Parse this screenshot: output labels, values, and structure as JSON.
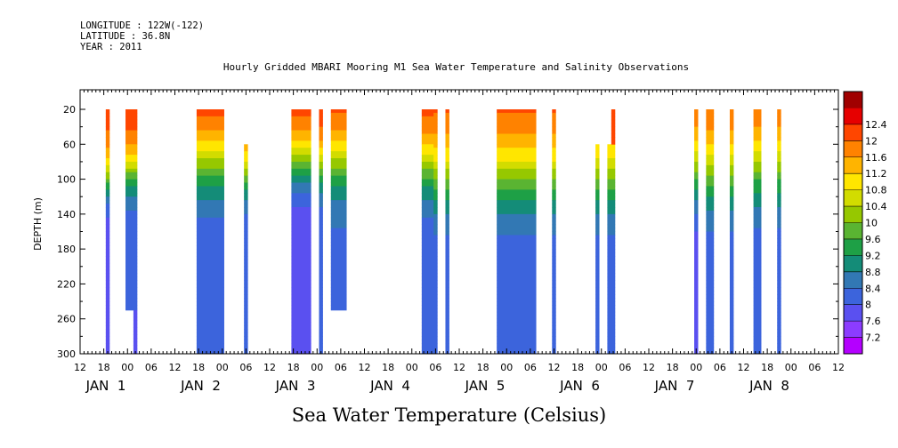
{
  "header": {
    "longitude": "LONGITUDE : 122W(-122)",
    "latitude": "LATITUDE : 36.8N",
    "year": "YEAR : 2011"
  },
  "chart_data": {
    "type": "heatmap",
    "title": "Hourly Gridded MBARI Mooring M1 Sea Water Temperature and Salinity Observations",
    "xlabel": "",
    "ylabel": "DEPTH (m)",
    "colorbar_label": "Sea Water Temperature (Celsius)",
    "x_unit": "hours since JAN 1 00",
    "xlim": [
      -12,
      180
    ],
    "ylim": [
      300,
      20
    ],
    "x_tick_labels": [
      "12",
      "18",
      "00",
      "06",
      "12",
      "18",
      "00",
      "06",
      "12",
      "18",
      "00",
      "06",
      "12",
      "18",
      "00",
      "06",
      "12",
      "18",
      "00",
      "06",
      "12",
      "18",
      "00",
      "06",
      "12",
      "18",
      "00",
      "06",
      "12",
      "18",
      "00",
      "06",
      "12"
    ],
    "x_tick_hours": [
      -12,
      -6,
      0,
      6,
      12,
      18,
      24,
      30,
      36,
      42,
      48,
      54,
      60,
      66,
      72,
      78,
      84,
      90,
      96,
      102,
      108,
      114,
      120,
      126,
      132,
      138,
      144,
      150,
      156,
      162,
      168,
      174,
      180
    ],
    "date_labels": [
      {
        "label": "JAN  1",
        "hour": -10.5
      },
      {
        "label": "JAN  2",
        "hour": 13.5
      },
      {
        "label": "JAN  3",
        "hour": 37.5
      },
      {
        "label": "JAN  4",
        "hour": 61.5
      },
      {
        "label": "JAN  5",
        "hour": 85.5
      },
      {
        "label": "JAN  6",
        "hour": 109.5
      },
      {
        "label": "JAN  7",
        "hour": 133.5
      },
      {
        "label": "JAN  8",
        "hour": 157.5
      }
    ],
    "y_ticks": [
      20,
      60,
      100,
      140,
      180,
      220,
      260,
      300
    ],
    "colorbar_levels": [
      7.2,
      7.6,
      8,
      8.4,
      8.8,
      9.2,
      9.6,
      10,
      10.4,
      10.8,
      11.2,
      11.6,
      12,
      12.4
    ],
    "colorbar_colors": [
      "#b400ff",
      "#8c3cff",
      "#5a50f0",
      "#3c64dc",
      "#3278b4",
      "#148c78",
      "#1ea046",
      "#5ab432",
      "#96c800",
      "#d2dc00",
      "#ffe600",
      "#ffb400",
      "#ff8200",
      "#ff4600",
      "#e60000",
      "#a00000"
    ],
    "observation_blocks": [
      {
        "x0": -5.5,
        "x1": -4.5,
        "depth_top": 20,
        "depth_bottom": 300,
        "temp_surface": 12.2,
        "temp_bottom": 7.6,
        "thermocline_depth": 100,
        "width": 18
      },
      {
        "x0": -0.5,
        "x1": 2.5,
        "depth_top": 20,
        "depth_bottom": 250,
        "temp_surface": 12.4,
        "temp_bottom": 8.0,
        "thermocline_depth": 90,
        "width": 20
      },
      {
        "x0": 1.5,
        "x1": 2.5,
        "depth_top": 250,
        "depth_bottom": 300,
        "temp_surface": 8.0,
        "temp_bottom": 7.6,
        "thermocline_depth": 250,
        "width": 10
      },
      {
        "x0": 17.5,
        "x1": 24.5,
        "depth_top": 20,
        "depth_bottom": 300,
        "temp_surface": 12.6,
        "temp_bottom": 8.0,
        "thermocline_depth": 80,
        "width": 28
      },
      {
        "x0": 29.5,
        "x1": 30.5,
        "depth_top": 60,
        "depth_bottom": 300,
        "temp_surface": 12.0,
        "temp_bottom": 8.0,
        "thermocline_depth": 95,
        "width": 20
      },
      {
        "x0": 41.5,
        "x1": 46.5,
        "depth_top": 20,
        "depth_bottom": 300,
        "temp_surface": 12.4,
        "temp_bottom": 7.6,
        "thermocline_depth": 80,
        "width": 22
      },
      {
        "x0": 48.5,
        "x1": 49.5,
        "depth_top": 20,
        "depth_bottom": 300,
        "temp_surface": 12.4,
        "temp_bottom": 8.0,
        "thermocline_depth": 85,
        "width": 20
      },
      {
        "x0": 51.5,
        "x1": 55.5,
        "depth_top": 20,
        "depth_bottom": 250,
        "temp_surface": 12.4,
        "temp_bottom": 8.2,
        "thermocline_depth": 80,
        "width": 25
      },
      {
        "x0": 74.5,
        "x1": 78.5,
        "depth_top": 20,
        "depth_bottom": 300,
        "temp_surface": 12.4,
        "temp_bottom": 8.0,
        "thermocline_depth": 85,
        "width": 25
      },
      {
        "x0": 77.5,
        "x1": 78.5,
        "depth_top": 20,
        "depth_bottom": 300,
        "temp_surface": 12.4,
        "temp_bottom": 8.0,
        "thermocline_depth": 95,
        "width": 30
      },
      {
        "x0": 80.5,
        "x1": 81.5,
        "depth_top": 20,
        "depth_bottom": 300,
        "temp_surface": 12.4,
        "temp_bottom": 8.0,
        "thermocline_depth": 95,
        "width": 30
      },
      {
        "x0": 93.5,
        "x1": 103.5,
        "depth_top": 20,
        "depth_bottom": 300,
        "temp_surface": 12.4,
        "temp_bottom": 8.0,
        "thermocline_depth": 95,
        "width": 30
      },
      {
        "x0": 107.5,
        "x1": 108.5,
        "depth_top": 20,
        "depth_bottom": 300,
        "temp_surface": 12.4,
        "temp_bottom": 8.0,
        "thermocline_depth": 95,
        "width": 30
      },
      {
        "x0": 118.5,
        "x1": 119.5,
        "depth_top": 60,
        "depth_bottom": 300,
        "temp_surface": 12.0,
        "temp_bottom": 8.0,
        "thermocline_depth": 100,
        "width": 30
      },
      {
        "x0": 121.5,
        "x1": 123.5,
        "depth_top": 60,
        "depth_bottom": 300,
        "temp_surface": 12.0,
        "temp_bottom": 8.0,
        "thermocline_depth": 100,
        "width": 30
      },
      {
        "x0": 122.5,
        "x1": 123.5,
        "depth_top": 20,
        "depth_bottom": 60,
        "temp_surface": 12.4,
        "temp_bottom": 12.0,
        "thermocline_depth": 60,
        "width": 20
      },
      {
        "x0": 143.5,
        "x1": 144.5,
        "depth_top": 20,
        "depth_bottom": 300,
        "temp_surface": 12.4,
        "temp_bottom": 7.6,
        "thermocline_depth": 90,
        "width": 30
      },
      {
        "x0": 146.5,
        "x1": 148.5,
        "depth_top": 20,
        "depth_bottom": 300,
        "temp_surface": 12.4,
        "temp_bottom": 8.0,
        "thermocline_depth": 90,
        "width": 30
      },
      {
        "x0": 152.5,
        "x1": 153.5,
        "depth_top": 20,
        "depth_bottom": 300,
        "temp_surface": 12.4,
        "temp_bottom": 8.0,
        "thermocline_depth": 90,
        "width": 30
      },
      {
        "x0": 158.5,
        "x1": 160.5,
        "depth_top": 20,
        "depth_bottom": 300,
        "temp_surface": 12.4,
        "temp_bottom": 8.0,
        "thermocline_depth": 85,
        "width": 30
      },
      {
        "x0": 164.5,
        "x1": 165.5,
        "depth_top": 20,
        "depth_bottom": 300,
        "temp_surface": 12.4,
        "temp_bottom": 8.0,
        "thermocline_depth": 85,
        "width": 30
      }
    ]
  }
}
